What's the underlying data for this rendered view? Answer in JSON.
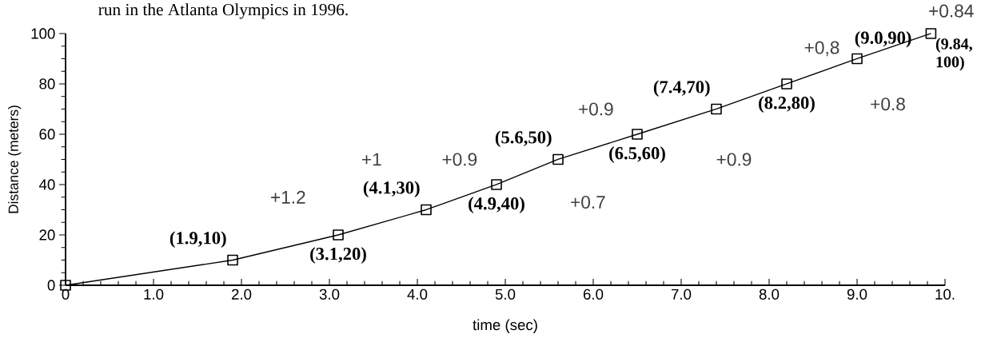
{
  "chart_data": {
    "type": "line",
    "title": "run in the Atlanta Olympics in 1996.",
    "xlabel": "time (sec)",
    "ylabel": "Distance (meters)",
    "x": [
      0,
      1.9,
      3.1,
      4.1,
      4.9,
      5.6,
      6.5,
      7.4,
      8.2,
      9.0,
      9.84
    ],
    "series": [
      {
        "color": "#000000",
        "values": [
          0,
          10,
          20,
          30,
          40,
          50,
          60,
          70,
          80,
          90,
          100
        ]
      }
    ],
    "marker": "square",
    "line_style": "solid",
    "xlim": [
      0,
      10
    ],
    "ylim": [
      0,
      100
    ],
    "xticks": [
      0,
      {
        "value": 1,
        "label": "1.0"
      },
      {
        "value": 2,
        "label": "2.0"
      },
      {
        "value": 3,
        "label": "3.0"
      },
      {
        "value": 4,
        "label": "4.0"
      },
      {
        "value": 5,
        "label": "5.0"
      },
      {
        "value": 6,
        "label": "6.0"
      },
      {
        "value": 7,
        "label": "7.0"
      },
      {
        "value": 8,
        "label": "8.0"
      },
      {
        "value": 9,
        "label": "9.0"
      },
      {
        "value": 10,
        "label": "10."
      }
    ],
    "yticks": [
      0,
      20,
      40,
      60,
      80,
      100
    ],
    "annotations": [
      {
        "text": "(1.9,10)",
        "x": 1.9,
        "y": 10
      },
      {
        "text": "(3.1,20)",
        "x": 3.1,
        "y": 20
      },
      {
        "text": "(4.1,30)",
        "x": 4.1,
        "y": 30
      },
      {
        "text": "(4.9,40)",
        "x": 4.9,
        "y": 40
      },
      {
        "text": "(5.6,50)",
        "x": 5.6,
        "y": 50
      },
      {
        "text": "(6.5,60)",
        "x": 6.5,
        "y": 60
      },
      {
        "text": "(7.4,70)",
        "x": 7.4,
        "y": 70
      },
      {
        "text": "(8.2,80)",
        "x": 8.2,
        "y": 80
      },
      {
        "text": "(9.0,90)",
        "x": 9.0,
        "y": 90
      },
      {
        "text": "(9.84, 100)",
        "x": 9.84,
        "y": 100
      },
      "+1.2",
      "+1",
      "+0.9",
      "+0.7",
      "+0.9",
      "+0.9",
      "+0,8",
      "+0.8",
      "+0.84"
    ]
  }
}
